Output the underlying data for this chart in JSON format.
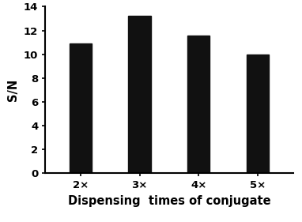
{
  "categories": [
    "2×",
    "3×",
    "4×",
    "5×"
  ],
  "values": [
    10.9,
    13.2,
    11.6,
    10.0
  ],
  "bar_color": "#111111",
  "xlabel": "Dispensing  times of conjugate",
  "ylabel": "S/N",
  "ylim": [
    0,
    14
  ],
  "yticks": [
    0,
    2,
    4,
    6,
    8,
    10,
    12,
    14
  ],
  "bar_width": 0.38,
  "xlabel_fontsize": 10.5,
  "ylabel_fontsize": 10.5,
  "tick_fontsize": 9.5,
  "figsize": [
    3.82,
    2.81
  ],
  "dpi": 100
}
